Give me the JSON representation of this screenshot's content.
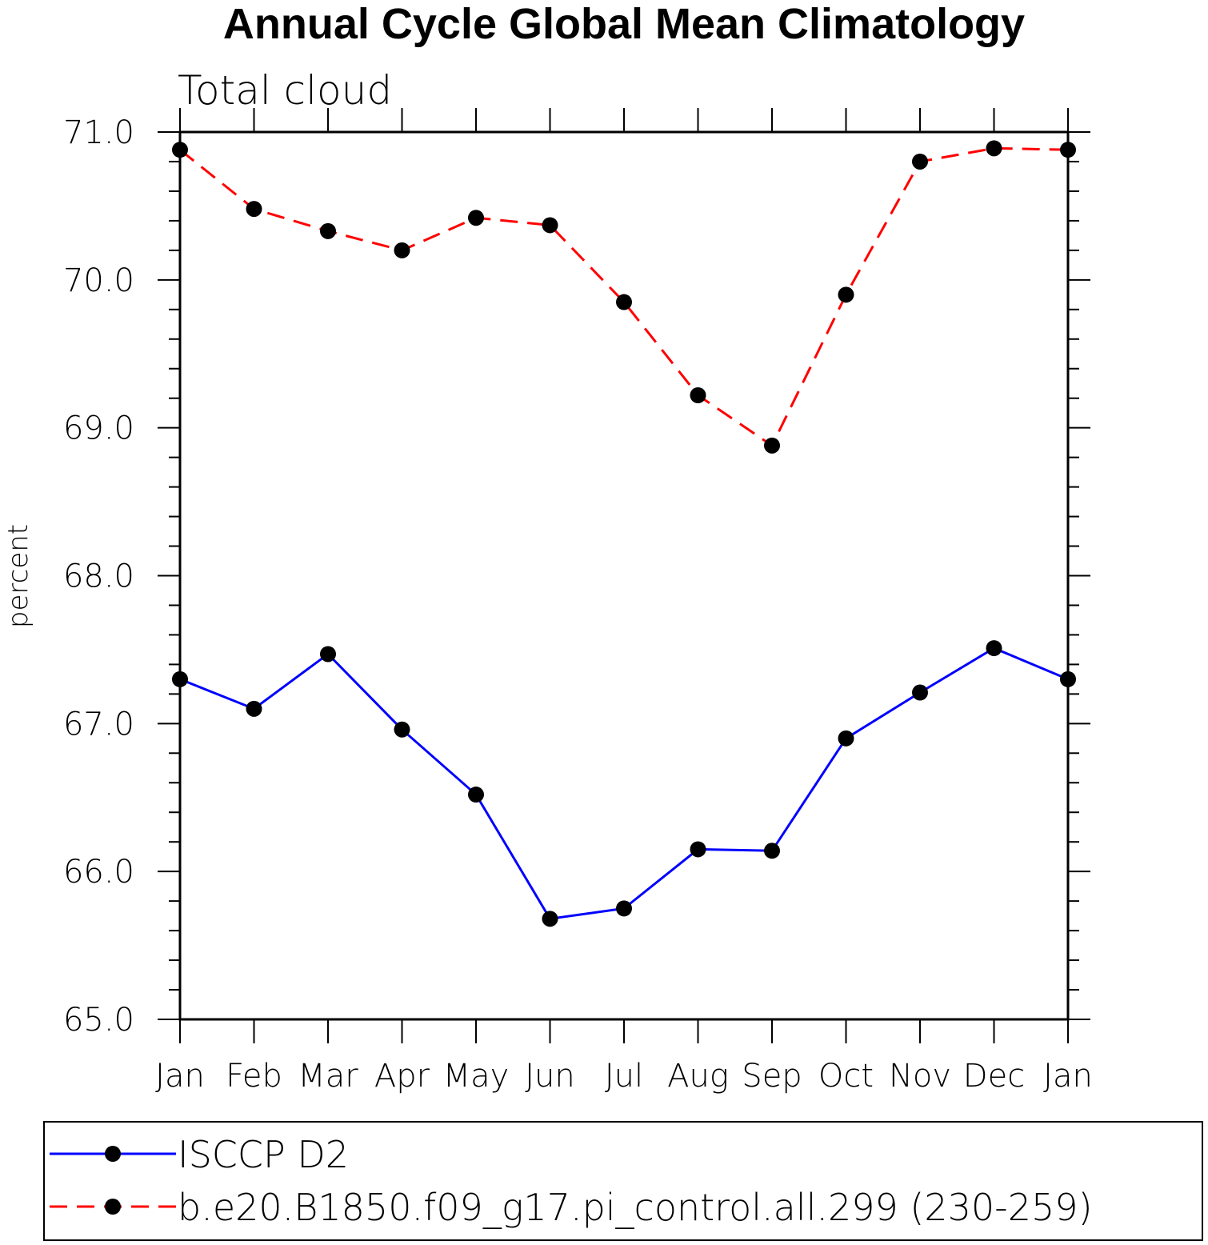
{
  "chart_data": {
    "type": "line",
    "title": "Annual Cycle Global Mean Climatology",
    "subtitle": "Total cloud",
    "xlabel": "",
    "ylabel": "percent",
    "categories": [
      "Jan",
      "Feb",
      "Mar",
      "Apr",
      "May",
      "Jun",
      "Jul",
      "Aug",
      "Sep",
      "Oct",
      "Nov",
      "Dec",
      "Jan"
    ],
    "ylim": [
      65.0,
      71.0
    ],
    "yticks": [
      "65.0",
      "66.0",
      "67.0",
      "68.0",
      "69.0",
      "70.0",
      "71.0"
    ],
    "grid": false,
    "legend_position": "bottom",
    "series": [
      {
        "name": "ISCCP D2",
        "color": "#0000ff",
        "dash": "solid",
        "marker": "filled-circle",
        "values": [
          67.3,
          67.1,
          67.47,
          66.96,
          66.52,
          65.68,
          65.75,
          66.15,
          66.14,
          66.9,
          67.21,
          67.51,
          67.3
        ]
      },
      {
        "name": "b.e20.B1850.f09_g17.pi_control.all.299 (230-259)",
        "color": "#ff0000",
        "dash": "dashed",
        "marker": "filled-circle",
        "values": [
          70.88,
          70.48,
          70.33,
          70.2,
          70.42,
          70.37,
          69.85,
          69.22,
          68.88,
          69.9,
          70.8,
          70.89,
          70.88
        ]
      }
    ]
  }
}
